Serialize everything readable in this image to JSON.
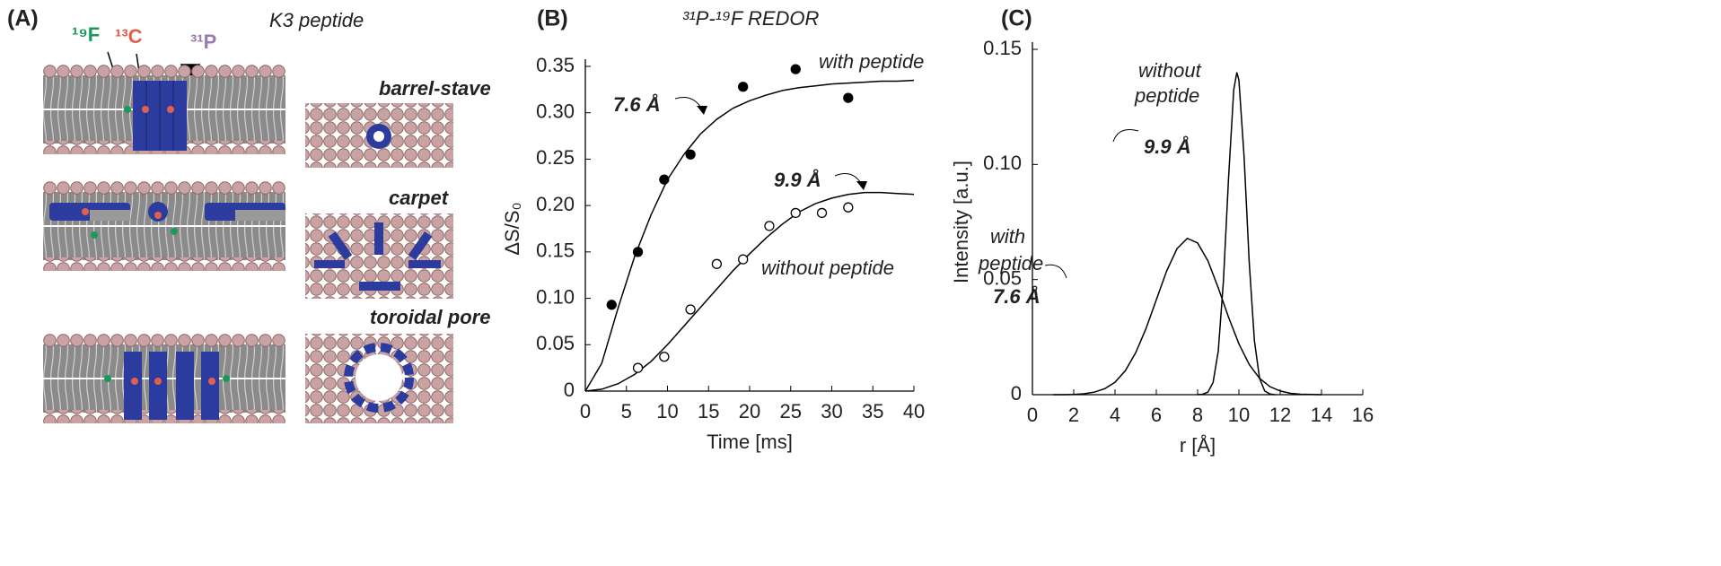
{
  "panel_a": {
    "panel_label": "(A)",
    "title": "K3 peptide",
    "isotopes": [
      "¹⁹F",
      "¹³C",
      "³¹P"
    ],
    "models": [
      "barrel-stave",
      "carpet",
      "toroidal pore"
    ]
  },
  "chart_data": [
    {
      "type": "scatter",
      "panel_label": "(B)",
      "title": "³¹P-¹⁹F REDOR",
      "x_label": "Time [ms]",
      "y_label": "ΔS/S₀",
      "xlim": [
        0,
        40
      ],
      "xticks": [
        0,
        5,
        10,
        15,
        20,
        25,
        30,
        35,
        40
      ],
      "ylim": [
        0,
        0.35
      ],
      "yticks": [
        0,
        0.05,
        {
          "value": 0.1,
          "label": "0.10"
        },
        0.15,
        {
          "value": 0.2,
          "label": "0.20"
        },
        0.25,
        {
          "value": 0.3,
          "label": "0.30"
        },
        0.35
      ],
      "fit_x": [
        0,
        2,
        4,
        6,
        8,
        10,
        12,
        14,
        16,
        18,
        20,
        22,
        24,
        26,
        28,
        30,
        32,
        34,
        36,
        38,
        40
      ],
      "series": [
        {
          "name": "with peptide",
          "distance": "7.6 Å",
          "color": "#000000",
          "filled": true,
          "x": [
            3.2,
            6.4,
            9.6,
            12.8,
            19.2,
            25.6,
            32
          ],
          "values": [
            0.093,
            0.15,
            0.228,
            0.255,
            0.328,
            0.347,
            0.316
          ],
          "fit": [
            0,
            0.03,
            0.09,
            0.145,
            0.19,
            0.228,
            0.255,
            0.277,
            0.293,
            0.305,
            0.313,
            0.319,
            0.324,
            0.327,
            0.329,
            0.331,
            0.332,
            0.333,
            0.334,
            0.334,
            0.335
          ]
        },
        {
          "name": "without peptide",
          "distance": "9.9 Å",
          "color": "#000000",
          "filled": false,
          "x": [
            6.4,
            9.6,
            12.8,
            16,
            19.2,
            22.4,
            25.6,
            28.8,
            32
          ],
          "values": [
            0.025,
            0.037,
            0.088,
            0.137,
            0.142,
            0.178,
            0.192,
            0.192,
            0.198
          ],
          "fit": [
            0,
            0.002,
            0.008,
            0.018,
            0.032,
            0.05,
            0.07,
            0.09,
            0.11,
            0.13,
            0.148,
            0.165,
            0.18,
            0.193,
            0.202,
            0.208,
            0.212,
            0.214,
            0.214,
            0.213,
            0.212
          ]
        }
      ]
    },
    {
      "type": "line",
      "panel_label": "(C)",
      "x_label": "r [Å]",
      "y_label": "Intensity [a.u.]",
      "xlim": [
        0,
        16
      ],
      "xticks": [
        0,
        2,
        4,
        6,
        8,
        10,
        12,
        14,
        16
      ],
      "ylim": [
        0,
        0.15
      ],
      "yticks": [
        0,
        0.05,
        {
          "value": 0.1,
          "label": "0.10"
        },
        0.15
      ],
      "series": [
        {
          "name_lines": [
            "with",
            "peptide"
          ],
          "distance": "7.6 Å",
          "color": "#000000",
          "x": [
            1,
            1.5,
            2,
            2.5,
            3,
            3.5,
            4,
            4.5,
            5,
            5.5,
            6,
            6.5,
            7,
            7.5,
            8,
            8.5,
            9,
            9.5,
            10,
            10.5,
            11,
            11.5,
            12,
            12.5,
            13,
            13.5,
            14
          ],
          "values": [
            0,
            0,
            0.0001,
            0.0004,
            0.0011,
            0.0026,
            0.0054,
            0.0104,
            0.0182,
            0.0287,
            0.0412,
            0.0537,
            0.0634,
            0.0679,
            0.0659,
            0.0581,
            0.0464,
            0.0336,
            0.0221,
            0.0131,
            0.0071,
            0.0035,
            0.0016,
            0.0006,
            0.0002,
            0.0001,
            0
          ]
        },
        {
          "name_lines": [
            "without",
            "peptide"
          ],
          "distance": "9.9 Å",
          "color": "#000000",
          "x": [
            8,
            8.25,
            8.5,
            8.75,
            9,
            9.25,
            9.5,
            9.75,
            9.9,
            10,
            10.25,
            10.5,
            10.75,
            11,
            11.25,
            11.5,
            11.75
          ],
          "values": [
            0,
            0.0002,
            0.0011,
            0.0053,
            0.0189,
            0.0493,
            0.0943,
            0.1324,
            0.14,
            0.1366,
            0.1035,
            0.0575,
            0.0235,
            0.0071,
            0.0016,
            0.0003,
            0
          ]
        }
      ]
    }
  ]
}
